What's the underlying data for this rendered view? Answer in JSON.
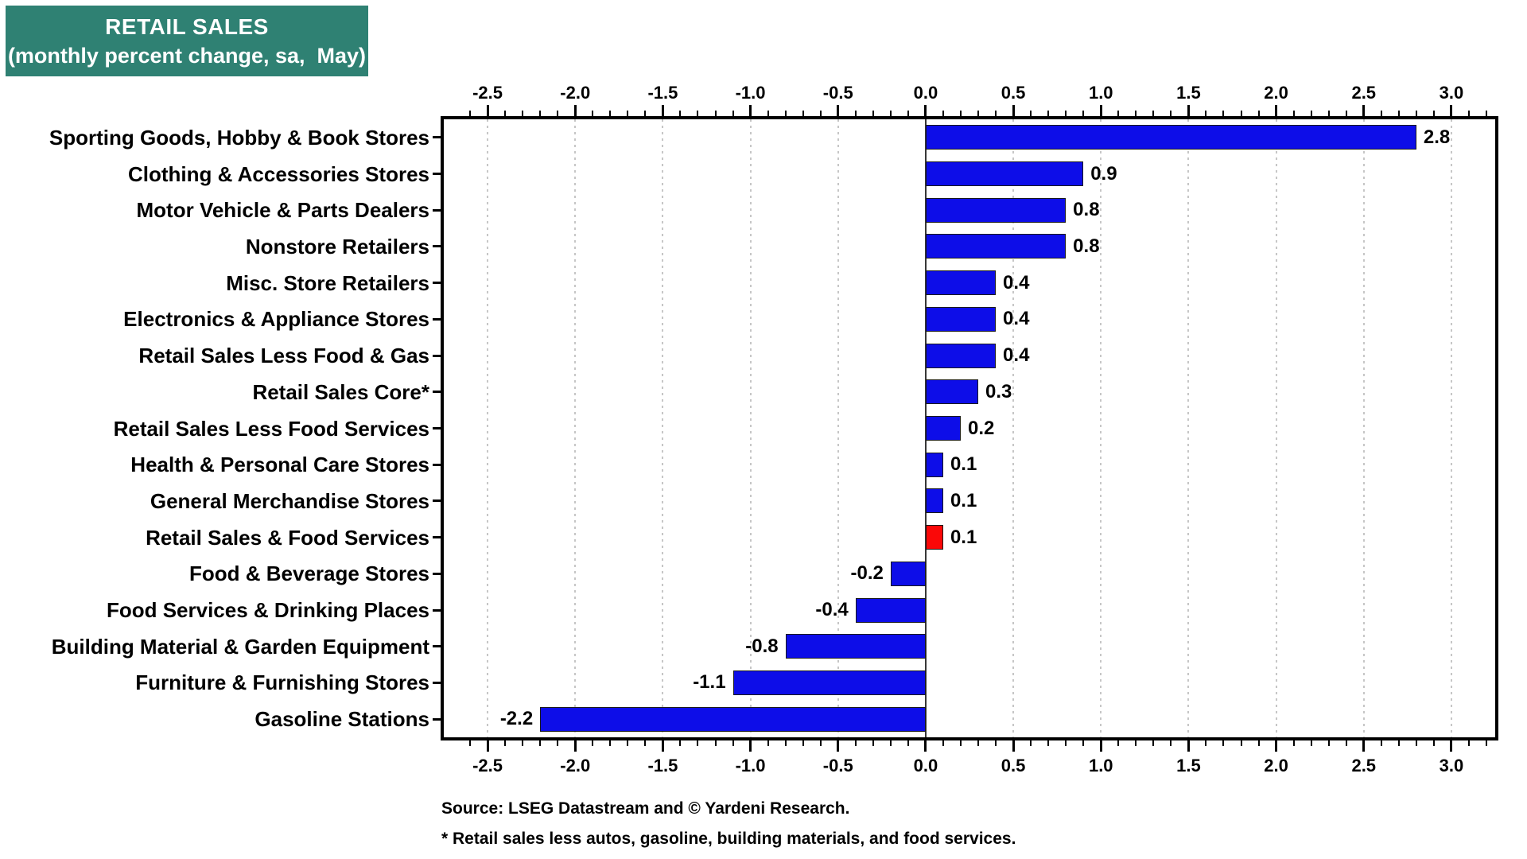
{
  "title": {
    "line1": "RETAIL SALES",
    "line2": "(monthly percent change, sa,  May)"
  },
  "chart_data": {
    "type": "bar",
    "orientation": "horizontal",
    "categories": [
      "Sporting Goods, Hobby & Book Stores",
      "Clothing & Accessories Stores",
      "Motor Vehicle & Parts Dealers",
      "Nonstore Retailers",
      "Misc. Store Retailers",
      "Electronics & Appliance Stores",
      "Retail Sales Less Food & Gas",
      "Retail Sales Core*",
      "Retail Sales Less Food Services",
      "Health & Personal Care Stores",
      "General Merchandise Stores",
      "Retail Sales & Food Services",
      "Food & Beverage Stores",
      "Food Services & Drinking Places",
      "Building Material & Garden Equipment",
      "Furniture & Furnishing Stores",
      "Gasoline Stations"
    ],
    "values": [
      2.8,
      0.9,
      0.8,
      0.8,
      0.4,
      0.4,
      0.4,
      0.3,
      0.2,
      0.1,
      0.1,
      0.1,
      -0.2,
      -0.4,
      -0.8,
      -1.1,
      -2.2
    ],
    "highlight_index": 11,
    "highlight_category": "Retail Sales & Food Services",
    "xlim": [
      -2.75,
      3.25
    ],
    "x_tick_values": [
      -2.5,
      -2.0,
      -1.5,
      -1.0,
      -0.5,
      0.0,
      0.5,
      1.0,
      1.5,
      2.0,
      2.5,
      3.0
    ],
    "x_tick_labels": [
      "-2.5",
      "-2.0",
      "-1.5",
      "-1.0",
      "-0.5",
      "0.0",
      "0.5",
      "1.0",
      "1.5",
      "2.0",
      "2.5",
      "3.0"
    ],
    "minor_tick_step": 0.1,
    "grid": "vertical dotted lines at major ticks",
    "axes_shown": [
      "top",
      "bottom"
    ],
    "legend": "none"
  },
  "colors": {
    "bar": "#0D0DE8",
    "highlight_bar": "#FA0808",
    "bar_border": "#1A1A1A",
    "title_bg": "#2F8173",
    "title_text": "#FFFFFF",
    "grid": "#C6C6C6",
    "zero_line": "#383838",
    "frame": "#000000"
  },
  "footer": {
    "source": "Source: LSEG Datastream and © Yardeni Research.",
    "note": "* Retail sales less autos, gasoline, building materials, and food services."
  }
}
